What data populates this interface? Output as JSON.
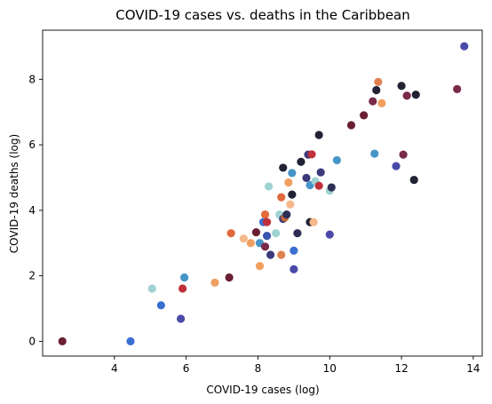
{
  "chart_data": {
    "type": "scatter",
    "title": "COVID-19 cases vs. deaths in the Caribbean",
    "xlabel": "COVID-19 cases (log)",
    "ylabel": "COVID-19 deaths (log)",
    "xlim": [
      2.0,
      14.25
    ],
    "ylim": [
      -0.45,
      9.5
    ],
    "xticks": [
      4,
      6,
      8,
      10,
      12,
      14
    ],
    "yticks": [
      0,
      2,
      4,
      6,
      8
    ],
    "grid": false,
    "legend": "none",
    "points": [
      {
        "x": 2.55,
        "y": 0.0,
        "color": "#6b1f33"
      },
      {
        "x": 4.45,
        "y": 0.0,
        "color": "#3a6fd1"
      },
      {
        "x": 5.05,
        "y": 1.61,
        "color": "#9fd3d1"
      },
      {
        "x": 5.3,
        "y": 1.1,
        "color": "#3a6fd1"
      },
      {
        "x": 5.85,
        "y": 0.69,
        "color": "#4a4aa8"
      },
      {
        "x": 5.9,
        "y": 1.61,
        "color": "#c0303b"
      },
      {
        "x": 5.95,
        "y": 1.95,
        "color": "#4695c8"
      },
      {
        "x": 6.8,
        "y": 1.79,
        "color": "#f0a060"
      },
      {
        "x": 7.2,
        "y": 1.95,
        "color": "#6b1f33"
      },
      {
        "x": 7.25,
        "y": 3.3,
        "color": "#e06a3a"
      },
      {
        "x": 7.6,
        "y": 3.14,
        "color": "#f6b98c"
      },
      {
        "x": 7.8,
        "y": 3.0,
        "color": "#f0a060"
      },
      {
        "x": 7.95,
        "y": 3.33,
        "color": "#6b1f33"
      },
      {
        "x": 8.05,
        "y": 3.0,
        "color": "#4695c8"
      },
      {
        "x": 8.05,
        "y": 2.3,
        "color": "#f0a060"
      },
      {
        "x": 8.15,
        "y": 3.64,
        "color": "#3a6fd1"
      },
      {
        "x": 8.2,
        "y": 2.89,
        "color": "#7a2a4a"
      },
      {
        "x": 8.2,
        "y": 3.87,
        "color": "#e06a3a"
      },
      {
        "x": 8.25,
        "y": 3.64,
        "color": "#c0303b"
      },
      {
        "x": 8.25,
        "y": 3.22,
        "color": "#3a55b0"
      },
      {
        "x": 8.3,
        "y": 4.73,
        "color": "#9fd3d1"
      },
      {
        "x": 8.35,
        "y": 2.64,
        "color": "#3a3a7a"
      },
      {
        "x": 8.5,
        "y": 3.3,
        "color": "#9fd3d1"
      },
      {
        "x": 8.6,
        "y": 3.87,
        "color": "#9fd3d1"
      },
      {
        "x": 8.65,
        "y": 4.4,
        "color": "#e06a3a"
      },
      {
        "x": 8.65,
        "y": 2.64,
        "color": "#e08050"
      },
      {
        "x": 8.7,
        "y": 5.3,
        "color": "#222235"
      },
      {
        "x": 8.7,
        "y": 3.74,
        "color": "#3a3a7a"
      },
      {
        "x": 8.75,
        "y": 3.78,
        "color": "#c06a3a"
      },
      {
        "x": 8.8,
        "y": 3.87,
        "color": "#2d2d55"
      },
      {
        "x": 8.85,
        "y": 4.85,
        "color": "#f0a060"
      },
      {
        "x": 8.9,
        "y": 4.18,
        "color": "#f6b98c"
      },
      {
        "x": 8.95,
        "y": 4.48,
        "color": "#222235"
      },
      {
        "x": 8.95,
        "y": 5.14,
        "color": "#4695c8"
      },
      {
        "x": 9.0,
        "y": 2.77,
        "color": "#3a6fd1"
      },
      {
        "x": 9.0,
        "y": 2.2,
        "color": "#4a4aa8"
      },
      {
        "x": 9.1,
        "y": 3.3,
        "color": "#2d2d55"
      },
      {
        "x": 9.2,
        "y": 5.48,
        "color": "#222235"
      },
      {
        "x": 9.35,
        "y": 4.99,
        "color": "#3a3a7a"
      },
      {
        "x": 9.4,
        "y": 5.7,
        "color": "#3a3a7a"
      },
      {
        "x": 9.45,
        "y": 4.77,
        "color": "#4695c8"
      },
      {
        "x": 9.45,
        "y": 3.64,
        "color": "#222235"
      },
      {
        "x": 9.5,
        "y": 5.71,
        "color": "#c0303b"
      },
      {
        "x": 9.55,
        "y": 3.64,
        "color": "#f6b98c"
      },
      {
        "x": 9.6,
        "y": 4.89,
        "color": "#9fd3d1"
      },
      {
        "x": 9.7,
        "y": 4.75,
        "color": "#c0303b"
      },
      {
        "x": 9.7,
        "y": 6.3,
        "color": "#222235"
      },
      {
        "x": 9.75,
        "y": 5.16,
        "color": "#3a3a7a"
      },
      {
        "x": 10.0,
        "y": 4.6,
        "color": "#9fd3d1"
      },
      {
        "x": 10.0,
        "y": 3.26,
        "color": "#4a4aa8"
      },
      {
        "x": 10.05,
        "y": 4.7,
        "color": "#2d2d55"
      },
      {
        "x": 10.2,
        "y": 5.53,
        "color": "#4695c8"
      },
      {
        "x": 10.6,
        "y": 6.6,
        "color": "#6b1f33"
      },
      {
        "x": 10.95,
        "y": 6.9,
        "color": "#6b1f33"
      },
      {
        "x": 11.2,
        "y": 7.33,
        "color": "#7a2a4a"
      },
      {
        "x": 11.25,
        "y": 5.73,
        "color": "#4695c8"
      },
      {
        "x": 11.3,
        "y": 7.67,
        "color": "#222235"
      },
      {
        "x": 11.35,
        "y": 7.92,
        "color": "#e08050"
      },
      {
        "x": 11.45,
        "y": 7.27,
        "color": "#f0a060"
      },
      {
        "x": 11.85,
        "y": 5.35,
        "color": "#4a4aa8"
      },
      {
        "x": 12.0,
        "y": 7.8,
        "color": "#222235"
      },
      {
        "x": 12.05,
        "y": 5.7,
        "color": "#7a2a4a"
      },
      {
        "x": 12.15,
        "y": 7.5,
        "color": "#7a2a4a"
      },
      {
        "x": 12.35,
        "y": 4.93,
        "color": "#222235"
      },
      {
        "x": 12.4,
        "y": 7.53,
        "color": "#222235"
      },
      {
        "x": 13.55,
        "y": 7.7,
        "color": "#7a2a4a"
      },
      {
        "x": 13.75,
        "y": 9.01,
        "color": "#4a4aa8"
      }
    ]
  }
}
